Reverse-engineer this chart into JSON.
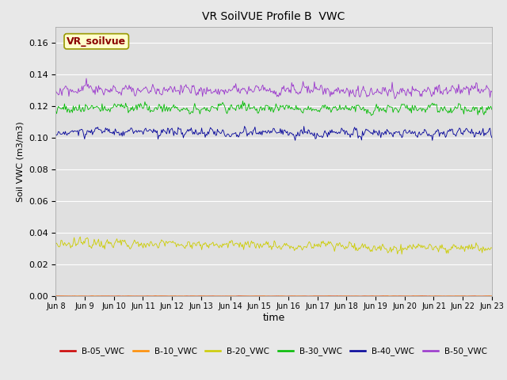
{
  "title": "VR SoilVUE Profile B  VWC",
  "xlabel": "time",
  "ylabel": "Soil VWC (m3/m3)",
  "ylim": [
    0.0,
    0.17
  ],
  "yticks": [
    0.0,
    0.02,
    0.04,
    0.06,
    0.08,
    0.1,
    0.12,
    0.14,
    0.16
  ],
  "date_start": "2023-06-08",
  "date_end": "2023-06-23",
  "n_points": 500,
  "series": {
    "B-05_VWC": {
      "color": "#cc0000",
      "base": 0.00015,
      "noise": 5e-05,
      "trend": 0.0
    },
    "B-10_VWC": {
      "color": "#ff8c00",
      "base": 0.00015,
      "noise": 5e-05,
      "trend": 0.0
    },
    "B-20_VWC": {
      "color": "#cccc00",
      "base": 0.034,
      "noise": 0.0025,
      "trend": -0.004
    },
    "B-30_VWC": {
      "color": "#00bb00",
      "base": 0.119,
      "noise": 0.0025,
      "trend": -0.001
    },
    "B-40_VWC": {
      "color": "#000099",
      "base": 0.104,
      "noise": 0.0025,
      "trend": -0.001
    },
    "B-50_VWC": {
      "color": "#9933cc",
      "base": 0.13,
      "noise": 0.003,
      "trend": 0.0
    }
  },
  "annotation_text": "VR_soilvue",
  "annotation_color": "#8b0000",
  "annotation_bg": "#ffffcc",
  "annotation_border": "#999900",
  "legend_colors": {
    "B-05_VWC": "#cc0000",
    "B-10_VWC": "#ff8c00",
    "B-20_VWC": "#cccc00",
    "B-30_VWC": "#00bb00",
    "B-40_VWC": "#000099",
    "B-50_VWC": "#9933cc"
  },
  "bg_color": "#e8e8e8",
  "plot_bg_color": "#e0e0e0",
  "grid_color": "#ffffff",
  "fig_width": 6.4,
  "fig_height": 4.8,
  "fig_dpi": 100
}
